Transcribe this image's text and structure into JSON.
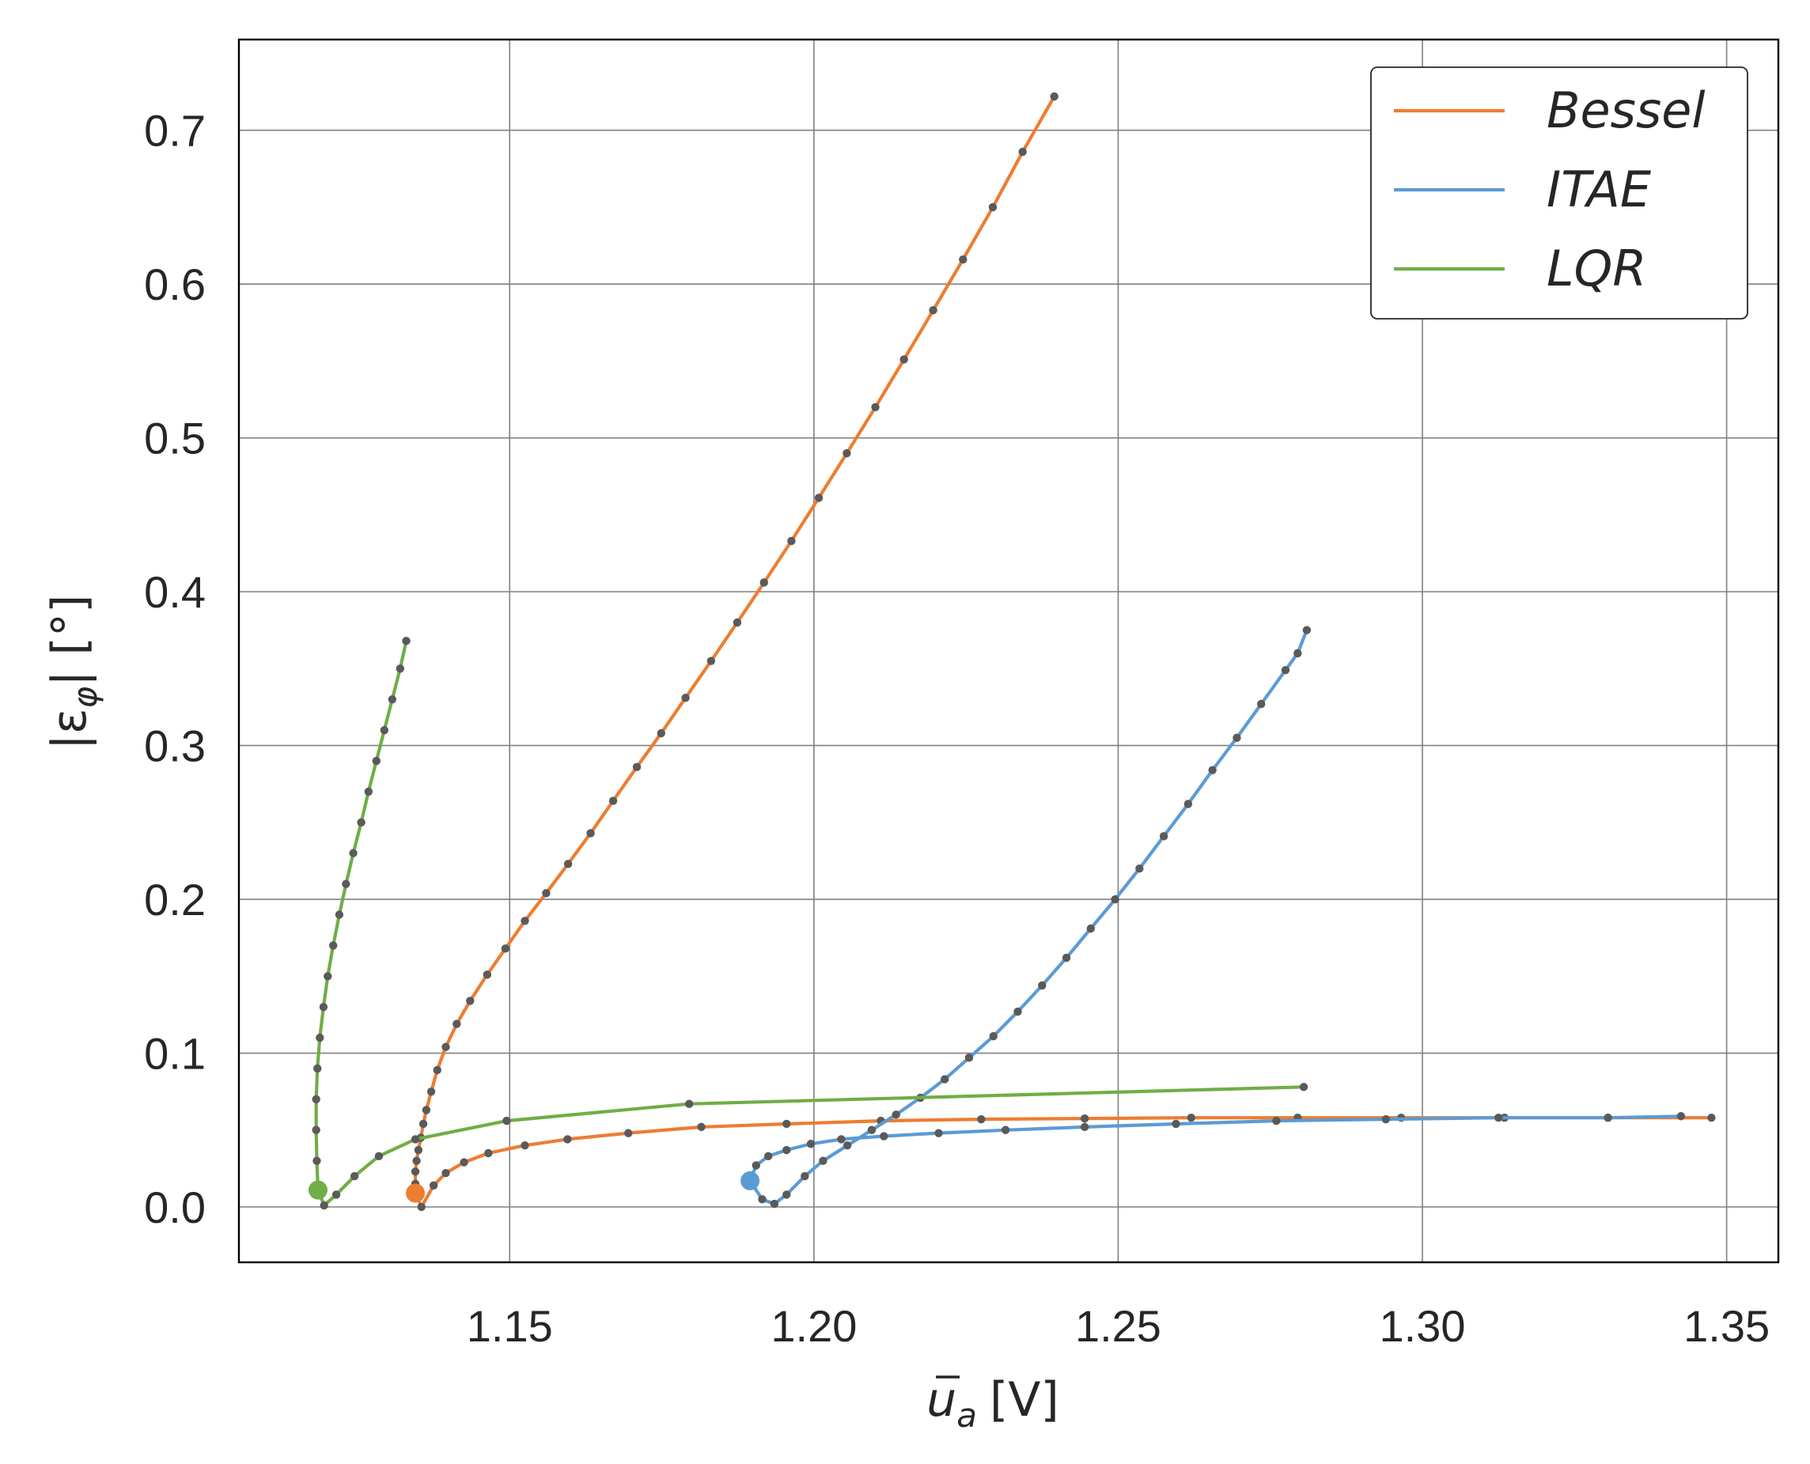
{
  "chart_data": {
    "type": "line",
    "title": "",
    "xlabel_main": "u",
    "xlabel_sub": "a",
    "xlabel_unit": "[V]",
    "ylabel_pre": "|ε",
    "ylabel_sub": "φ",
    "ylabel_post": "| [°]",
    "xlim": [
      1.1055,
      1.3585
    ],
    "ylim": [
      -0.036,
      0.759
    ],
    "xticks": [
      1.15,
      1.2,
      1.25,
      1.3,
      1.35
    ],
    "xtick_labels": [
      "1.15",
      "1.20",
      "1.25",
      "1.30",
      "1.35"
    ],
    "yticks": [
      0.0,
      0.1,
      0.2,
      0.3,
      0.4,
      0.5,
      0.6,
      0.7
    ],
    "ytick_labels": [
      "0.0",
      "0.1",
      "0.2",
      "0.3",
      "0.4",
      "0.5",
      "0.6",
      "0.7"
    ],
    "grid": true,
    "legend_position": "top-right",
    "marker_color": "#5a5a5a",
    "series": [
      {
        "name": "Bessel",
        "color": "#ed7d31",
        "start": [
          1.1345,
          0.009
        ],
        "points": [
          [
            1.1345,
            0.009
          ],
          [
            1.1355,
            0.0
          ],
          [
            1.1375,
            0.014
          ],
          [
            1.1395,
            0.022
          ],
          [
            1.1425,
            0.029
          ],
          [
            1.1465,
            0.035
          ],
          [
            1.1525,
            0.04
          ],
          [
            1.1595,
            0.044
          ],
          [
            1.1695,
            0.048
          ],
          [
            1.1815,
            0.052
          ],
          [
            1.1955,
            0.054
          ],
          [
            1.211,
            0.056
          ],
          [
            1.2275,
            0.057
          ],
          [
            1.2445,
            0.0575
          ],
          [
            1.262,
            0.058
          ],
          [
            1.2795,
            0.058
          ],
          [
            1.2965,
            0.058
          ],
          [
            1.3135,
            0.058
          ],
          [
            1.3305,
            0.058
          ],
          [
            1.3475,
            0.058
          ]
        ],
        "points2": [
          [
            1.1345,
            0.009
          ],
          [
            1.1345,
            0.015
          ],
          [
            1.1345,
            0.023
          ],
          [
            1.1347,
            0.03
          ],
          [
            1.135,
            0.037
          ],
          [
            1.1354,
            0.045
          ],
          [
            1.1358,
            0.054
          ],
          [
            1.1363,
            0.063
          ],
          [
            1.1371,
            0.075
          ],
          [
            1.1381,
            0.089
          ],
          [
            1.1395,
            0.104
          ],
          [
            1.1413,
            0.119
          ],
          [
            1.1435,
            0.134
          ],
          [
            1.1463,
            0.151
          ],
          [
            1.1493,
            0.168
          ],
          [
            1.1525,
            0.186
          ],
          [
            1.156,
            0.204
          ],
          [
            1.1596,
            0.223
          ],
          [
            1.1633,
            0.243
          ],
          [
            1.167,
            0.264
          ],
          [
            1.1709,
            0.286
          ],
          [
            1.1749,
            0.308
          ],
          [
            1.1789,
            0.331
          ],
          [
            1.1831,
            0.355
          ],
          [
            1.1874,
            0.38
          ],
          [
            1.1918,
            0.406
          ],
          [
            1.1963,
            0.433
          ],
          [
            1.2008,
            0.461
          ],
          [
            1.2054,
            0.49
          ],
          [
            1.2101,
            0.52
          ],
          [
            1.2148,
            0.551
          ],
          [
            1.2196,
            0.583
          ],
          [
            1.2245,
            0.616
          ],
          [
            1.2294,
            0.65
          ],
          [
            1.2343,
            0.686
          ],
          [
            1.2395,
            0.722
          ]
        ]
      },
      {
        "name": "ITAE",
        "color": "#5b9bd5",
        "start": [
          1.1895,
          0.017
        ],
        "points": [
          [
            1.1895,
            0.017
          ],
          [
            1.1905,
            0.027
          ],
          [
            1.1925,
            0.033
          ],
          [
            1.1955,
            0.037
          ],
          [
            1.1995,
            0.041
          ],
          [
            1.2045,
            0.044
          ],
          [
            1.2115,
            0.046
          ],
          [
            1.2205,
            0.048
          ],
          [
            1.2315,
            0.05
          ],
          [
            1.2445,
            0.052
          ],
          [
            1.2595,
            0.054
          ],
          [
            1.276,
            0.056
          ],
          [
            1.294,
            0.057
          ],
          [
            1.3125,
            0.058
          ],
          [
            1.3305,
            0.058
          ],
          [
            1.3425,
            0.059
          ]
        ],
        "points2": [
          [
            1.1895,
            0.017
          ],
          [
            1.1915,
            0.005
          ],
          [
            1.1935,
            0.002
          ],
          [
            1.1955,
            0.008
          ],
          [
            1.1985,
            0.02
          ],
          [
            1.2015,
            0.03
          ],
          [
            1.2055,
            0.04
          ],
          [
            1.2095,
            0.05
          ],
          [
            1.2135,
            0.06
          ],
          [
            1.2175,
            0.071
          ],
          [
            1.2215,
            0.083
          ],
          [
            1.2255,
            0.097
          ],
          [
            1.2295,
            0.111
          ],
          [
            1.2335,
            0.127
          ],
          [
            1.2375,
            0.144
          ],
          [
            1.2415,
            0.162
          ],
          [
            1.2455,
            0.181
          ],
          [
            1.2495,
            0.2
          ],
          [
            1.2535,
            0.22
          ],
          [
            1.2575,
            0.241
          ],
          [
            1.2615,
            0.262
          ],
          [
            1.2655,
            0.284
          ],
          [
            1.2695,
            0.305
          ],
          [
            1.2735,
            0.327
          ],
          [
            1.2775,
            0.349
          ],
          [
            1.2795,
            0.36
          ],
          [
            1.281,
            0.375
          ]
        ]
      },
      {
        "name": "LQR",
        "color": "#70ad47",
        "start": [
          1.1185,
          0.011
        ],
        "points": [
          [
            1.1185,
            0.011
          ],
          [
            1.1195,
            0.001
          ],
          [
            1.1215,
            0.008
          ],
          [
            1.1245,
            0.02
          ],
          [
            1.1285,
            0.033
          ],
          [
            1.1345,
            0.044
          ],
          [
            1.1495,
            0.056
          ],
          [
            1.1795,
            0.067
          ],
          [
            1.2805,
            0.078
          ]
        ],
        "points2": [
          [
            1.1185,
            0.011
          ],
          [
            1.1183,
            0.03
          ],
          [
            1.1182,
            0.05
          ],
          [
            1.1182,
            0.07
          ],
          [
            1.1184,
            0.09
          ],
          [
            1.1188,
            0.11
          ],
          [
            1.1194,
            0.13
          ],
          [
            1.1201,
            0.15
          ],
          [
            1.121,
            0.17
          ],
          [
            1.122,
            0.19
          ],
          [
            1.1231,
            0.21
          ],
          [
            1.1243,
            0.23
          ],
          [
            1.1256,
            0.25
          ],
          [
            1.1268,
            0.27
          ],
          [
            1.1281,
            0.29
          ],
          [
            1.1294,
            0.31
          ],
          [
            1.1307,
            0.33
          ],
          [
            1.132,
            0.35
          ],
          [
            1.133,
            0.368
          ]
        ]
      }
    ]
  }
}
